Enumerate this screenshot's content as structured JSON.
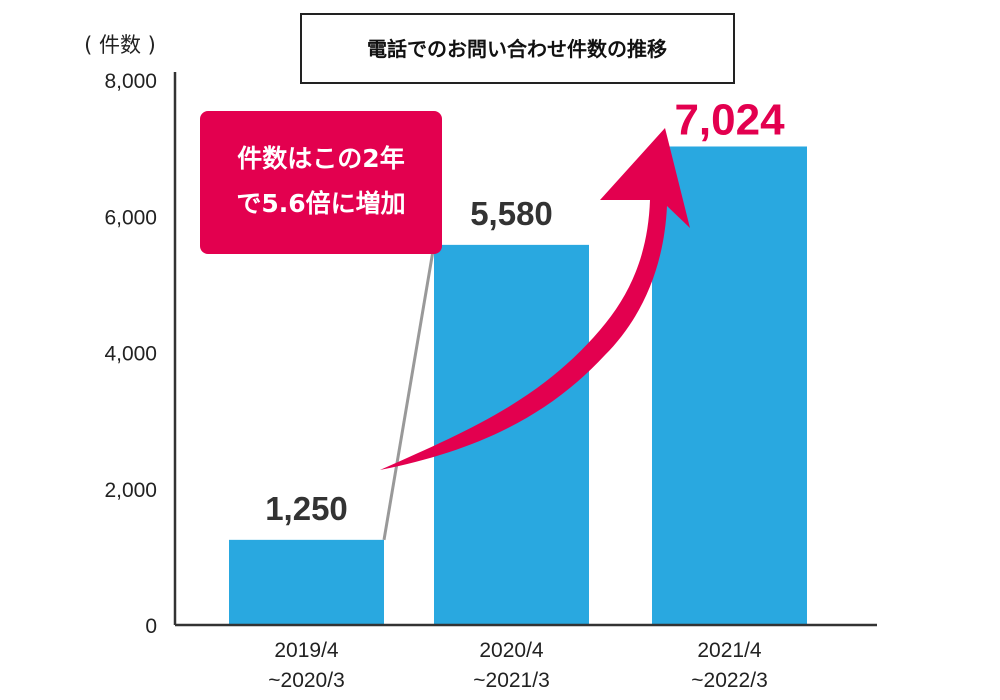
{
  "chart_data": {
    "type": "bar",
    "title": "電話でのお問い合わせ件数の推移",
    "ylabel": "( 件数 )",
    "xlabel": "",
    "ylim": [
      0,
      8000
    ],
    "yticks": [
      "0",
      "2,000",
      "4,000",
      "6,000",
      "8,000"
    ],
    "categories": [
      [
        "2019/4",
        "~2020/3"
      ],
      [
        "2020/4",
        "~2021/3"
      ],
      [
        "2021/4",
        "~2022/3"
      ]
    ],
    "values": [
      1250,
      5580,
      7024
    ],
    "value_labels": [
      "1,250",
      "5,580",
      "7,024"
    ],
    "highlight_index": 2,
    "callout": [
      "件数はこの2年",
      "で5.6倍に増加"
    ],
    "grid": false,
    "legend": "none"
  },
  "colors": {
    "bar": "#29a8e0",
    "accent": "#e3004f",
    "axis": "#333333",
    "connector": "#999999"
  }
}
